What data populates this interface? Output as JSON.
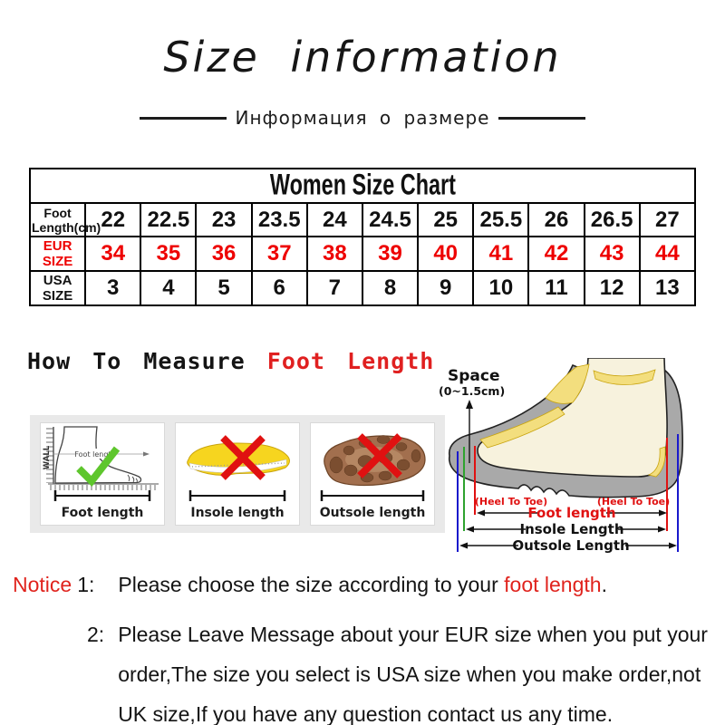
{
  "title": "Size information",
  "subtitle": "Информация о размере",
  "size_chart": {
    "title": "Women Size Chart",
    "rows": [
      {
        "label": "Foot Length(cm)",
        "values": [
          "22",
          "22.5",
          "23",
          "23.5",
          "24",
          "24.5",
          "25",
          "25.5",
          "26",
          "26.5",
          "27"
        ]
      },
      {
        "label": "EUR SIZE",
        "values": [
          "34",
          "35",
          "36",
          "37",
          "38",
          "39",
          "40",
          "41",
          "42",
          "43",
          "44"
        ]
      },
      {
        "label": "USA SIZE",
        "values": [
          "3",
          "4",
          "5",
          "6",
          "7",
          "8",
          "9",
          "10",
          "11",
          "12",
          "13"
        ]
      }
    ]
  },
  "measure_section": {
    "heading_black": "How To Measure ",
    "heading_red": "Foot Length",
    "box1": {
      "label": "Foot length",
      "inner_label": "Foot length",
      "wall_label": "WALL"
    },
    "box2": {
      "label": "Insole length"
    },
    "box3": {
      "label": "Outsole length"
    }
  },
  "diagram": {
    "space_label": "Space",
    "space_range": "(0~1.5cm)",
    "heel_to_toe_left": "(Heel To Toe)",
    "heel_to_toe_right": "(Heel To Toe)",
    "foot_length_label": "Foot length",
    "insole_length_label": "Insole Length",
    "outsole_length_label": "Outsole Length"
  },
  "notice": {
    "label": "Notice",
    "item1": {
      "num": "1:",
      "pre": "Please choose the size according to your ",
      "red": "foot length",
      "post": "."
    },
    "item2": {
      "num": "2:",
      "text": "Please Leave Message about your EUR size when you put your order,The size you select is USA size when you make order,not UK size,If you have any question  contact us any time."
    }
  },
  "colors": {
    "accent_red": "#ee0000",
    "notice_red": "#e0231d",
    "strip_bg": "#e9e9e9",
    "shoe_gray": "#a9a9a9",
    "foot_cream": "#f7f2dd",
    "insole_yellow": "#f6d51f",
    "outsole_brown": "#a26f4e",
    "check_green": "#5ec62d",
    "cross_red": "#e01111",
    "blue_line": "#1a1acc",
    "green_line": "#2fa32f",
    "red_line": "#e01111"
  }
}
